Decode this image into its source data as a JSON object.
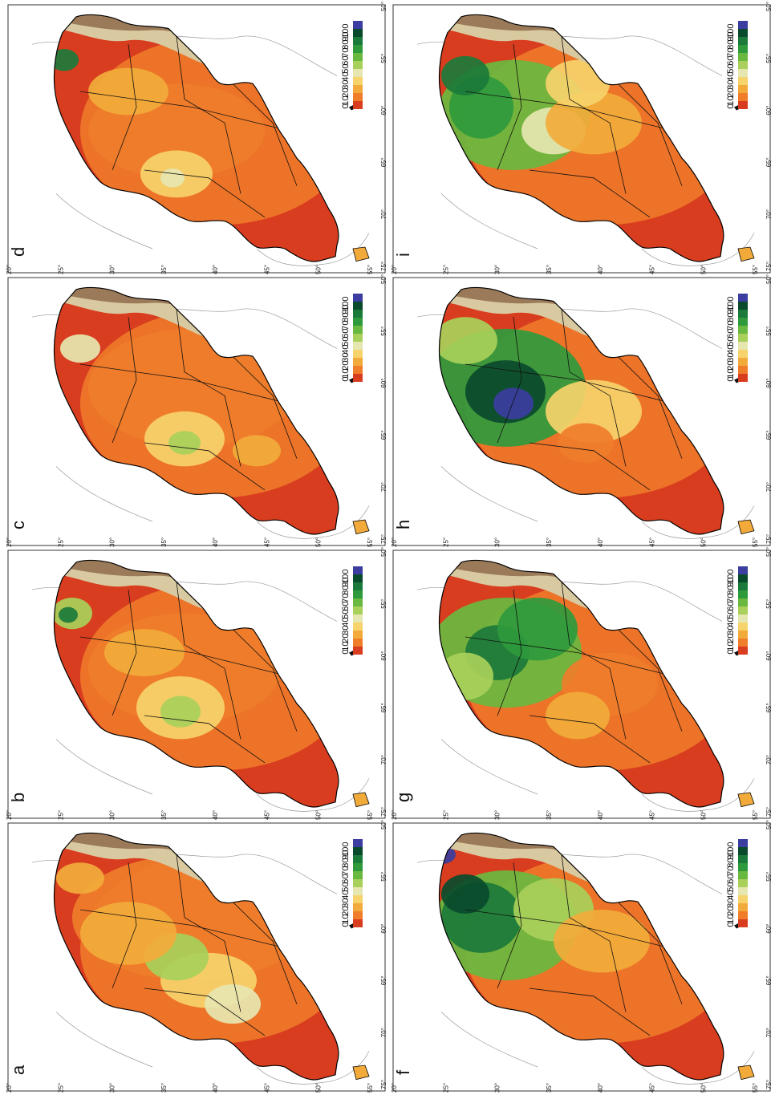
{
  "figure": {
    "panels": [
      {
        "letter": "a",
        "variant": 0
      },
      {
        "letter": "b",
        "variant": 1
      },
      {
        "letter": "c",
        "variant": 2
      },
      {
        "letter": "d",
        "variant": 3
      },
      {
        "letter": "f",
        "variant": 4
      },
      {
        "letter": "g",
        "variant": 5
      },
      {
        "letter": "h",
        "variant": 6
      },
      {
        "letter": "i",
        "variant": 7
      }
    ],
    "lat_ticks": [
      "20°",
      "25°",
      "30°",
      "35°",
      "40°",
      "45°",
      "50°",
      "55°"
    ],
    "lon_ticks": [
      "75°",
      "70°",
      "65°",
      "60°",
      "55°",
      "50°"
    ],
    "legend": {
      "labels": [
        "100",
        "90",
        "80",
        "70",
        "60",
        "50",
        "40",
        "30",
        "20",
        "10",
        "0"
      ],
      "colors": [
        "#3b3da0",
        "#0a4a2c",
        "#1b7a3a",
        "#2f9a3c",
        "#69b83f",
        "#a8d05a",
        "#e6e6b0",
        "#f6d36b",
        "#f2ab3b",
        "#ef7d2a",
        "#d93d1f"
      ]
    },
    "colors": {
      "andes_high": "#9a7a58",
      "andes_mid": "#d9c9a0",
      "border": "#111111",
      "coast": "#999999",
      "frame": "#333333"
    }
  }
}
